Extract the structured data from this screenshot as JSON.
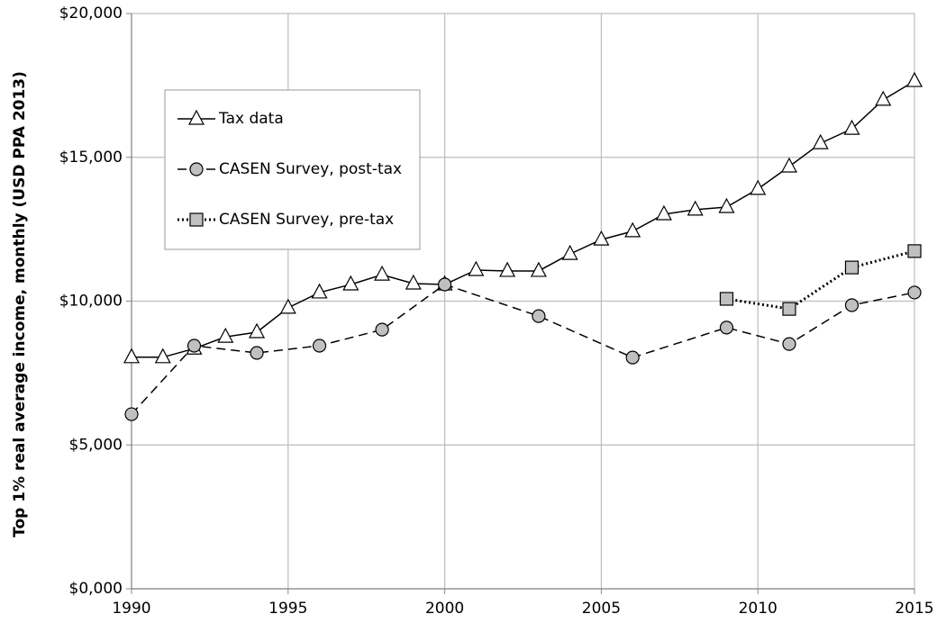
{
  "chart_data": {
    "type": "line",
    "y_label": "Top 1% real average income, monthly (USD PPA 2013)",
    "xlim": [
      1990,
      2015
    ],
    "xticks": [
      1990,
      1995,
      2000,
      2005,
      2010,
      2015
    ],
    "ylim": [
      0,
      20000
    ],
    "yticks": [
      {
        "value": 0,
        "label": "$0,000"
      },
      {
        "value": 5000,
        "label": "$5,000"
      },
      {
        "value": 10000,
        "label": "$10,000"
      },
      {
        "value": 15000,
        "label": "$15,000"
      },
      {
        "value": 20000,
        "label": "$20,000"
      }
    ],
    "grid": true,
    "legend": "upper left",
    "series": [
      {
        "name": "Tax data",
        "color": "#000000",
        "marker_fill": "#ffffff",
        "marker": "triangle",
        "dash": "solid",
        "x": [
          1990,
          1991,
          1992,
          1993,
          1994,
          1995,
          1996,
          1997,
          1998,
          1999,
          2000,
          2001,
          2002,
          2003,
          2004,
          2005,
          2006,
          2007,
          2008,
          2009,
          2010,
          2011,
          2012,
          2013,
          2014,
          2015
        ],
        "values": [
          8050,
          8050,
          8350,
          8760,
          8920,
          9770,
          10300,
          10580,
          10920,
          10610,
          10580,
          11080,
          11050,
          11050,
          11640,
          12140,
          12430,
          13020,
          13180,
          13270,
          13900,
          14680,
          15490,
          15990,
          17000,
          17650
        ]
      },
      {
        "name": "CASEN Survey, post-tax",
        "color": "#000000",
        "marker_fill": "#c0c0c0",
        "marker": "circle",
        "dash": "dashed",
        "x": [
          1990,
          1992,
          1994,
          1996,
          1998,
          2000,
          2003,
          2006,
          2009,
          2011,
          2013,
          2015
        ],
        "values": [
          6070,
          8450,
          8200,
          8450,
          9010,
          10580,
          9480,
          8040,
          9080,
          8510,
          9860,
          10300
        ]
      },
      {
        "name": "CASEN Survey, pre-tax",
        "color": "#000000",
        "marker_fill": "#c0c0c0",
        "marker": "square",
        "dash": "dotted",
        "x": [
          2009,
          2011,
          2013,
          2015
        ],
        "values": [
          10080,
          9730,
          11170,
          11740
        ]
      }
    ]
  }
}
